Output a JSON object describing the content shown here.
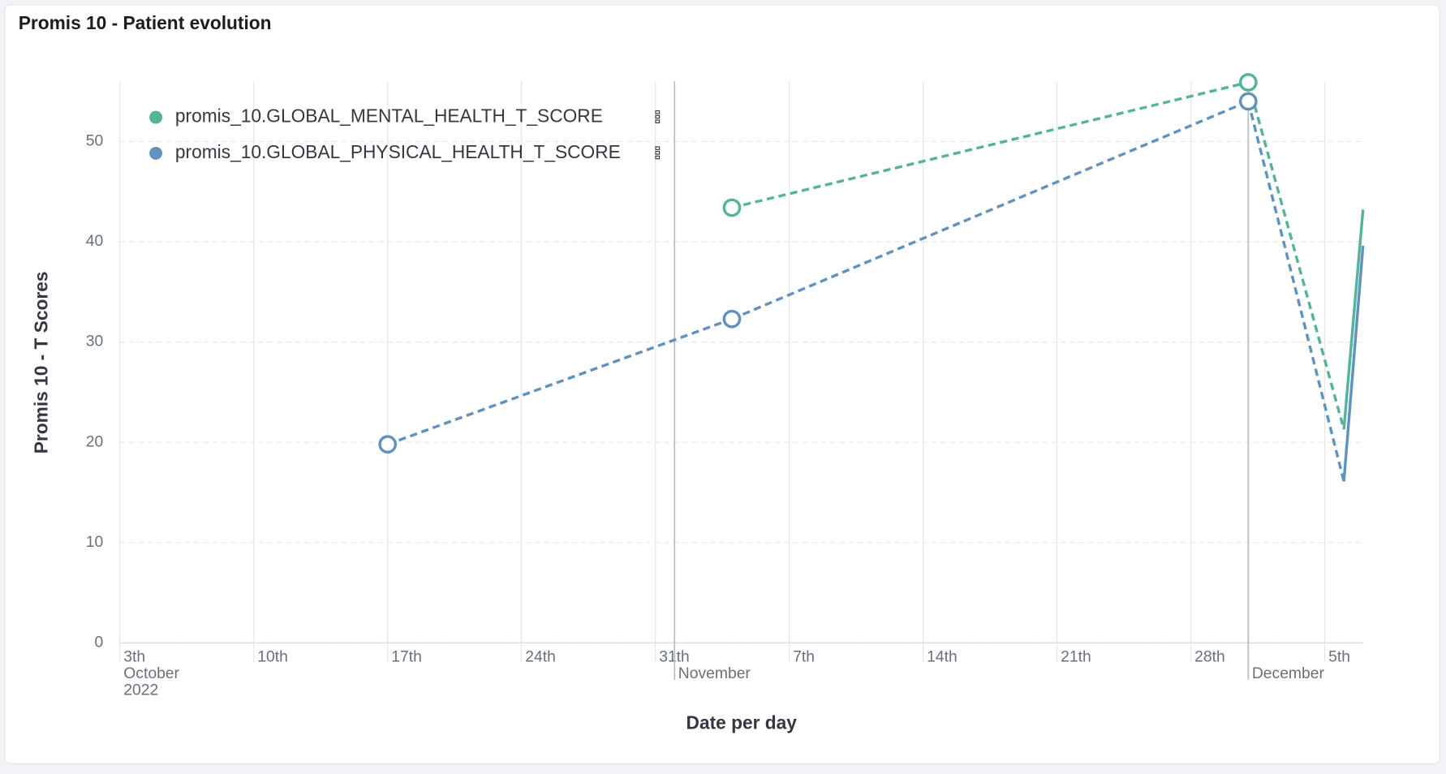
{
  "chart_data": {
    "type": "line",
    "title": "Promis 10 - Patient evolution",
    "x_label": "Date per day",
    "y_label": "Promis 10 - T Scores",
    "x": [
      "2022-10-17",
      "2022-11-04",
      "2022-12-01",
      "2022-12-06",
      "2022-12-07"
    ],
    "series": [
      {
        "name": "promis_10.GLOBAL_MENTAL_HEALTH_T_SCORE",
        "color": "#54b399",
        "values": [
          null,
          43.4,
          55.9,
          21.3,
          43.2
        ]
      },
      {
        "name": "promis_10.GLOBAL_PHYSICAL_HEALTH_T_SCORE",
        "color": "#6092c0",
        "values": [
          19.8,
          32.3,
          54.0,
          16.1,
          39.6
        ]
      }
    ],
    "xlim": [
      "2022-10-03",
      "2022-12-07"
    ],
    "xticks": [
      {
        "value": "2022-10-03",
        "label": "3th"
      },
      {
        "value": "2022-10-10",
        "label": "10th"
      },
      {
        "value": "2022-10-17",
        "label": "17th"
      },
      {
        "value": "2022-10-24",
        "label": "24th"
      },
      {
        "value": "2022-10-31",
        "label": "31th"
      },
      {
        "value": "2022-11-07",
        "label": "7th"
      },
      {
        "value": "2022-11-14",
        "label": "14th"
      },
      {
        "value": "2022-11-21",
        "label": "21th"
      },
      {
        "value": "2022-11-28",
        "label": "28th"
      },
      {
        "value": "2022-12-05",
        "label": "5th"
      }
    ],
    "month_ticks": [
      {
        "value": "2022-10-03",
        "label": "October"
      },
      {
        "value": "2022-11-01",
        "label": "November"
      },
      {
        "value": "2022-12-01",
        "label": "December"
      }
    ],
    "year_label": "2022",
    "ylim": [
      0,
      56
    ],
    "yticks": [
      0,
      10,
      20,
      30,
      40,
      50
    ],
    "grid": true,
    "legend": "top-left"
  }
}
